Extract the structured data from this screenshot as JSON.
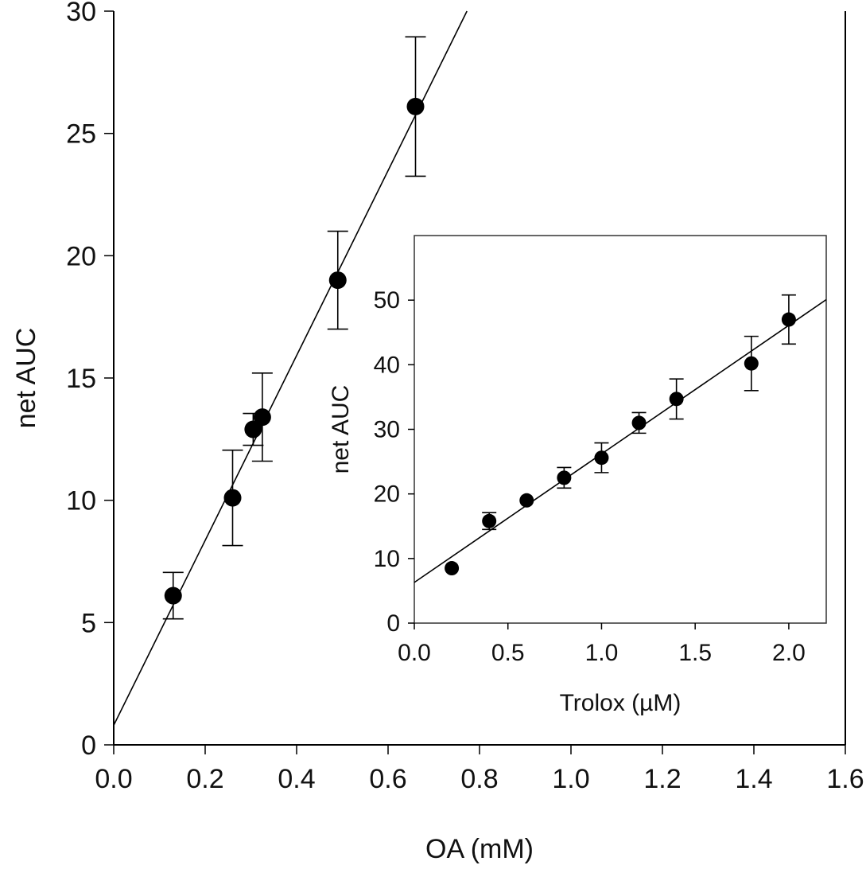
{
  "chart_data": [
    {
      "type": "scatter",
      "xlabel": "OA (mM)",
      "ylabel": "net AUC",
      "xlim": [
        0,
        1.6
      ],
      "ylim": [
        0,
        30
      ],
      "x_ticks": [
        "0.0",
        "0.2",
        "0.4",
        "0.6",
        "0.8",
        "1.0",
        "1.2",
        "1.4",
        "1.6"
      ],
      "y_ticks": [
        "0",
        "5",
        "10",
        "15",
        "20",
        "25",
        "30"
      ],
      "x_tick_values": [
        0,
        0.2,
        0.4,
        0.6,
        0.8,
        1.0,
        1.2,
        1.4,
        1.6
      ],
      "y_tick_values": [
        0,
        5,
        10,
        15,
        20,
        25,
        30
      ],
      "points": [
        {
          "x": 0.13,
          "y": 6.1,
          "err": 0.95
        },
        {
          "x": 0.26,
          "y": 10.1,
          "err": 1.95
        },
        {
          "x": 0.305,
          "y": 12.9,
          "err": 0.65
        },
        {
          "x": 0.325,
          "y": 13.4,
          "err": 1.8
        },
        {
          "x": 0.49,
          "y": 19.0,
          "err": 2.0
        },
        {
          "x": 0.66,
          "y": 26.1,
          "err": 2.85
        }
      ],
      "fit_line": {
        "intercept": 0.8,
        "slope": 37.8
      }
    },
    {
      "type": "scatter",
      "xlabel": "Trolox (µM)",
      "ylabel": "net AUC",
      "xlim": [
        0,
        2.2
      ],
      "ylim": [
        0,
        60
      ],
      "x_ticks": [
        "0.0",
        "0.5",
        "1.0",
        "1.5",
        "2.0"
      ],
      "y_ticks": [
        "0",
        "10",
        "20",
        "30",
        "40",
        "50"
      ],
      "x_tick_values": [
        0,
        0.5,
        1.0,
        1.5,
        2.0
      ],
      "y_tick_values": [
        0,
        10,
        20,
        30,
        40,
        50
      ],
      "points": [
        {
          "x": 0.2,
          "y": 8.5,
          "err": 0
        },
        {
          "x": 0.4,
          "y": 15.8,
          "err": 1.3
        },
        {
          "x": 0.6,
          "y": 19.0,
          "err": 0
        },
        {
          "x": 0.8,
          "y": 22.5,
          "err": 1.6
        },
        {
          "x": 1.0,
          "y": 25.6,
          "err": 2.3
        },
        {
          "x": 1.2,
          "y": 31.0,
          "err": 1.6
        },
        {
          "x": 1.4,
          "y": 34.7,
          "err": 3.1
        },
        {
          "x": 1.8,
          "y": 40.2,
          "err": 4.2
        },
        {
          "x": 2.0,
          "y": 47.0,
          "err": 3.8
        }
      ],
      "fit_line": {
        "intercept": 6.3,
        "slope": 19.9
      }
    }
  ]
}
